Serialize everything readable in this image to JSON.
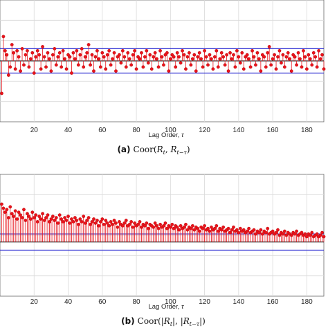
{
  "chart_data": [
    {
      "type": "stem",
      "panel_tag": "(a)",
      "caption": "Coor(R_t, R_{t−τ})",
      "caption_parts": {
        "func": "Coor(",
        "a": "R",
        "a_sub": "t",
        "sep": ", ",
        "b": "R",
        "b_sub": "t−τ",
        "close": ")"
      },
      "xlabel": "Lag Order, τ",
      "xlabel_parts": {
        "text": "Lag Order, ",
        "sym": "τ"
      },
      "xlim": [
        0,
        190
      ],
      "xticks": [
        20,
        40,
        60,
        80,
        100,
        120,
        140,
        160,
        180
      ],
      "ylim": [
        -0.3,
        0.3
      ],
      "grid": true,
      "bounds": [
        0.06,
        -0.06
      ],
      "series": [
        {
          "x_start": 1,
          "values": [
            -0.16,
            0.12,
            0.05,
            0.03,
            -0.07,
            -0.03,
            0.08,
            0.04,
            -0.04,
            0.05,
            0.02,
            -0.05,
            0.06,
            -0.02,
            0.03,
            0.05,
            -0.03,
            0.01,
            0.04,
            -0.06,
            0.02,
            0.05,
            0.03,
            -0.04,
            0.07,
            0.02,
            -0.03,
            0.04,
            0.01,
            -0.05,
            0.03,
            0.06,
            -0.02,
            0.02,
            0.04,
            -0.03,
            0.05,
            0.01,
            -0.04,
            0.03,
            0.02,
            -0.06,
            0.04,
            0.01,
            0.05,
            -0.02,
            0.03,
            0.06,
            -0.03,
            0.02,
            0.04,
            0.08,
            -0.02,
            0.03,
            -0.05,
            0.02,
            0.05,
            0.01,
            -0.03,
            0.04,
            0.02,
            -0.04,
            0.03,
            0.05,
            -0.02,
            0.01,
            0.04,
            -0.05,
            0.02,
            0.03,
            -0.01,
            0.05,
            0.02,
            -0.03,
            0.04,
            0.01,
            -0.02,
            0.03,
            0.05,
            -0.04,
            0.02,
            0.01,
            0.04,
            -0.03,
            0.02,
            0.05,
            -0.01,
            0.03,
            -0.04,
            0.02,
            0.04,
            0.01,
            -0.03,
            0.05,
            0.02,
            -0.02,
            0.03,
            0.04,
            -0.05,
            0.01,
            0.03,
            0.02,
            -0.03,
            0.04,
            0.02,
            -0.01,
            0.05,
            0.03,
            -0.04,
            0.02,
            0.04,
            -0.02,
            0.01,
            0.03,
            -0.05,
            0.02,
            0.04,
            0.01,
            -0.03,
            0.05,
            0.02,
            -0.02,
            0.03,
            0.01,
            -0.04,
            0.02,
            0.05,
            -0.03,
            0.01,
            0.04,
            0.02,
            -0.02,
            0.03,
            -0.05,
            0.04,
            0.01,
            0.03,
            -0.03,
            0.05,
            0.02,
            -0.01,
            0.04,
            -0.04,
            0.02,
            0.03,
            0.01,
            -0.03,
            0.05,
            0.02,
            -0.02,
            0.04,
            0.01,
            -0.05,
            0.03,
            0.02,
            -0.03,
            0.04,
            0.07,
            -0.02,
            0.01,
            0.03,
            -0.04,
            0.02,
            0.05,
            -0.01,
            0.03,
            -0.03,
            0.02,
            0.04,
            0.01,
            -0.05,
            0.03,
            0.02,
            -0.02,
            0.04,
            0.01,
            -0.03,
            0.05,
            0.02,
            -0.04,
            0.03,
            0.01,
            -0.02,
            0.04,
            0.02,
            -0.03,
            0.05,
            0.01,
            0.03,
            -0.04,
            0.02
          ]
        }
      ],
      "colors": {
        "stem": "#e8131b",
        "marker": "#e8131b",
        "bound": "#2b2bd1",
        "grid": "#d9d9d9",
        "axis": "#555555"
      }
    },
    {
      "type": "stem",
      "panel_tag": "(b)",
      "caption": "Coor(|R_t|, |R_{t−τ}|)",
      "caption_parts": {
        "func": "Coor(|",
        "a": "R",
        "a_sub": "t",
        "sep": "|, |",
        "b": "R",
        "b_sub": "t−τ",
        "close": "|)"
      },
      "xlabel": "Lag Order, τ",
      "xlabel_parts": {
        "text": "Lag Order, ",
        "sym": "τ"
      },
      "xlim": [
        0,
        190
      ],
      "xticks": [
        20,
        40,
        60,
        80,
        100,
        120,
        140,
        160,
        180
      ],
      "ylim": [
        -0.4,
        0.5
      ],
      "grid": true,
      "bounds": [
        0.06,
        -0.06
      ],
      "series": [
        {
          "x_start": 1,
          "values": [
            0.28,
            0.25,
            0.22,
            0.24,
            0.18,
            0.26,
            0.21,
            0.19,
            0.23,
            0.17,
            0.22,
            0.2,
            0.18,
            0.24,
            0.16,
            0.21,
            0.19,
            0.17,
            0.22,
            0.18,
            0.2,
            0.15,
            0.19,
            0.17,
            0.21,
            0.16,
            0.18,
            0.2,
            0.15,
            0.17,
            0.19,
            0.16,
            0.18,
            0.14,
            0.2,
            0.17,
            0.15,
            0.18,
            0.16,
            0.19,
            0.14,
            0.17,
            0.15,
            0.18,
            0.16,
            0.13,
            0.17,
            0.15,
            0.19,
            0.14,
            0.16,
            0.18,
            0.13,
            0.15,
            0.17,
            0.14,
            0.16,
            0.12,
            0.15,
            0.17,
            0.13,
            0.16,
            0.14,
            0.12,
            0.15,
            0.13,
            0.16,
            0.14,
            0.11,
            0.15,
            0.13,
            0.12,
            0.14,
            0.16,
            0.12,
            0.13,
            0.15,
            0.11,
            0.14,
            0.12,
            0.13,
            0.15,
            0.11,
            0.13,
            0.12,
            0.14,
            0.1,
            0.13,
            0.12,
            0.11,
            0.14,
            0.12,
            0.1,
            0.13,
            0.11,
            0.12,
            0.14,
            0.1,
            0.12,
            0.11,
            0.13,
            0.1,
            0.12,
            0.11,
            0.09,
            0.12,
            0.1,
            0.11,
            0.13,
            0.09,
            0.11,
            0.1,
            0.12,
            0.09,
            0.11,
            0.1,
            0.08,
            0.11,
            0.1,
            0.12,
            0.09,
            0.1,
            0.08,
            0.11,
            0.09,
            0.1,
            0.12,
            0.08,
            0.1,
            0.09,
            0.11,
            0.08,
            0.09,
            0.1,
            0.07,
            0.09,
            0.11,
            0.08,
            0.09,
            0.07,
            0.1,
            0.08,
            0.09,
            0.07,
            0.08,
            0.1,
            0.07,
            0.08,
            0.09,
            0.06,
            0.08,
            0.07,
            0.09,
            0.06,
            0.08,
            0.07,
            0.1,
            0.06,
            0.07,
            0.08,
            0.06,
            0.07,
            0.09,
            0.05,
            0.07,
            0.06,
            0.08,
            0.05,
            0.07,
            0.06,
            0.05,
            0.07,
            0.06,
            0.08,
            0.05,
            0.06,
            0.07,
            0.05,
            0.06,
            0.04,
            0.06,
            0.05,
            0.07,
            0.04,
            0.05,
            0.06,
            0.04,
            0.05,
            0.07,
            0.04,
            0.05
          ]
        }
      ],
      "colors": {
        "stem": "#e8131b",
        "marker": "#e8131b",
        "bound": "#2b2bd1",
        "grid": "#d9d9d9",
        "axis": "#555555"
      }
    }
  ]
}
